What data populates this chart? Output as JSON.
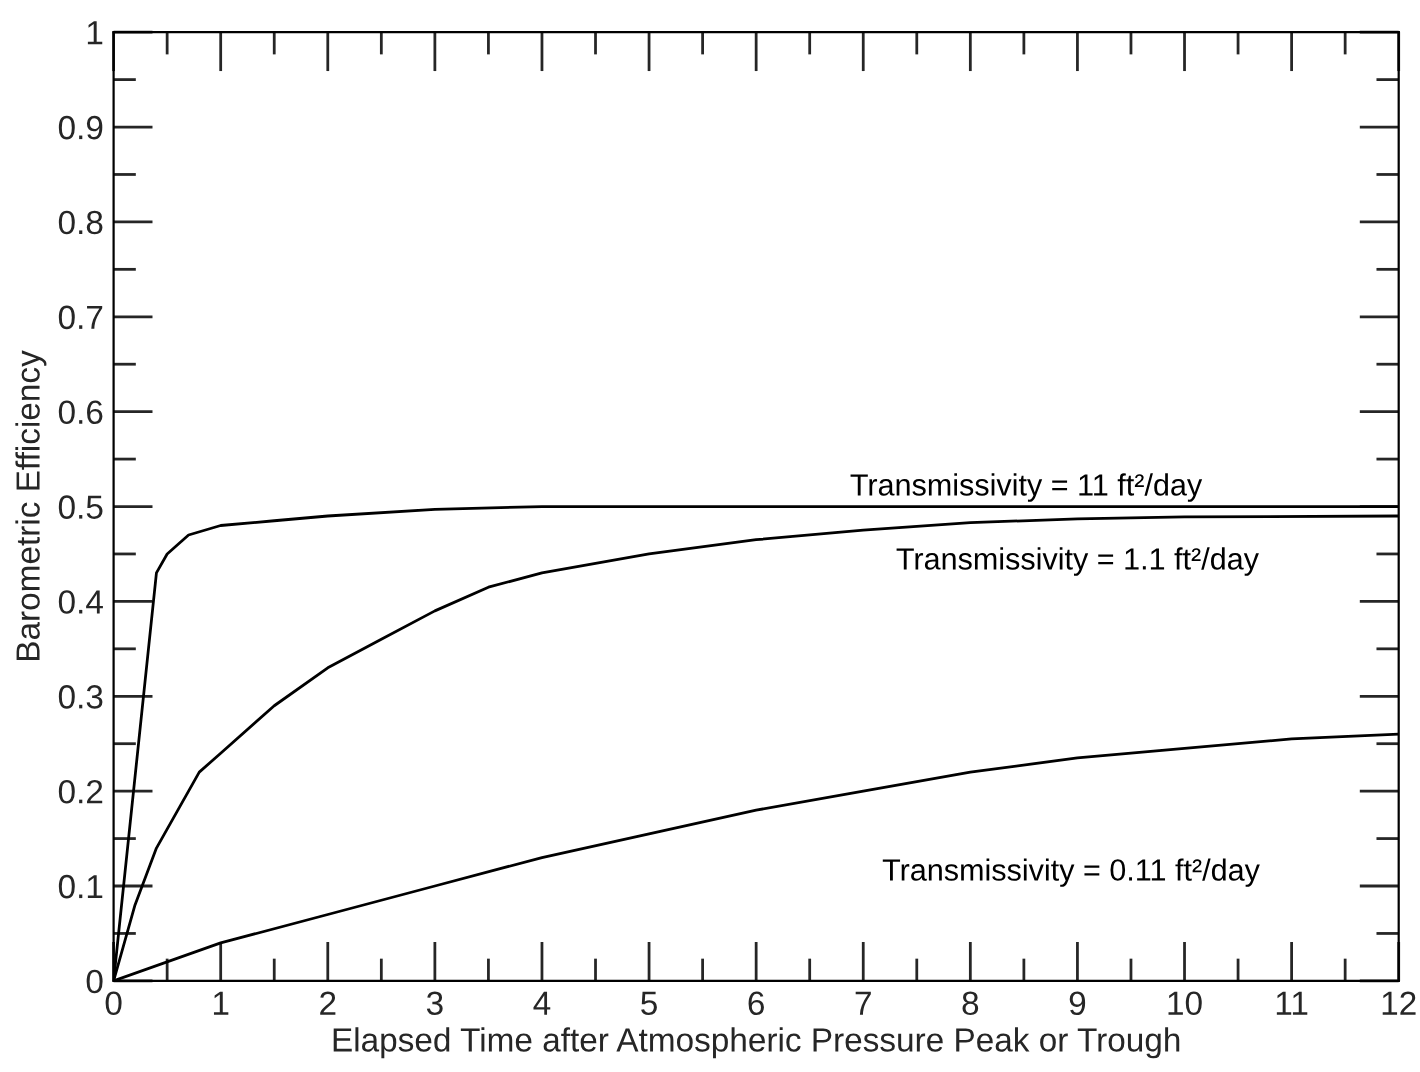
{
  "chart_data": {
    "type": "line",
    "xlabel": "Elapsed Time after Atmospheric Pressure Peak or Trough",
    "ylabel": "Barometric Efficiency",
    "xlim": [
      0,
      12
    ],
    "xticks": [
      0,
      1,
      2,
      3,
      4,
      5,
      6,
      7,
      8,
      9,
      10,
      11,
      12
    ],
    "ylim": [
      0,
      1
    ],
    "yticks": [
      0,
      0.1,
      0.2,
      0.3,
      0.4,
      0.5,
      0.6,
      0.7,
      0.8,
      0.9,
      1
    ],
    "grid": false,
    "legend": false,
    "marker": "none",
    "line_style": "solid",
    "series": [
      {
        "name": "Transmissivity = 11 ft²/day",
        "color": "#000000",
        "x": [
          0,
          0.4,
          0.5,
          0.7,
          1,
          1.5,
          2,
          3,
          4,
          12
        ],
        "values": [
          0,
          0.43,
          0.45,
          0.47,
          0.48,
          0.485,
          0.49,
          0.497,
          0.5,
          0.5
        ]
      },
      {
        "name": "Transmissivity = 1.1 ft²/day",
        "color": "#000000",
        "x": [
          0,
          0.2,
          0.4,
          0.6,
          0.8,
          1,
          1.5,
          2,
          2.5,
          3,
          3.5,
          4,
          5,
          6,
          7,
          8,
          9,
          10,
          12
        ],
        "values": [
          0,
          0.08,
          0.14,
          0.18,
          0.22,
          0.24,
          0.29,
          0.33,
          0.36,
          0.39,
          0.415,
          0.43,
          0.45,
          0.465,
          0.475,
          0.483,
          0.487,
          0.489,
          0.49
        ]
      },
      {
        "name": "Transmissivity = 0.11 ft²/day",
        "color": "#000000",
        "x": [
          0,
          1,
          2,
          3,
          4,
          5,
          6,
          7,
          8,
          9,
          10,
          11,
          12
        ],
        "values": [
          0,
          0.04,
          0.07,
          0.1,
          0.13,
          0.155,
          0.18,
          0.2,
          0.22,
          0.235,
          0.245,
          0.255,
          0.26
        ]
      }
    ]
  }
}
